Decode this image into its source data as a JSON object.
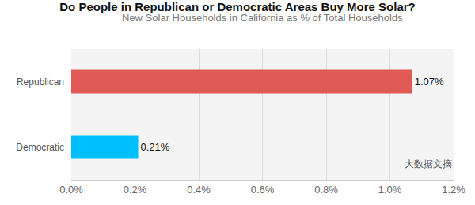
{
  "chart_data": {
    "type": "bar",
    "orientation": "horizontal",
    "title": "Do People in Republican or Democratic Areas Buy More Solar?",
    "subtitle": "New Solar Households in California as % of Total Households",
    "categories": [
      "Republican",
      "Democratic"
    ],
    "values": [
      1.07,
      0.21
    ],
    "value_labels": [
      "1.07%",
      "0.21%"
    ],
    "colors": [
      "#e05a55",
      "#00bfff"
    ],
    "data_labels": true,
    "xlim": [
      0,
      1.2
    ],
    "xticks": [
      {
        "value": 0,
        "label": "0.0%"
      },
      {
        "value": 0.2,
        "label": "0.2%"
      },
      {
        "value": 0.4,
        "label": "0.4%"
      },
      {
        "value": 0.6,
        "label": "0.6%"
      },
      {
        "value": 0.8,
        "label": "0.8%"
      },
      {
        "value": 1.0,
        "label": "1.0%"
      },
      {
        "value": 1.2,
        "label": "1.2%"
      }
    ],
    "grid": true,
    "annotations": [
      "大数据文摘"
    ]
  }
}
